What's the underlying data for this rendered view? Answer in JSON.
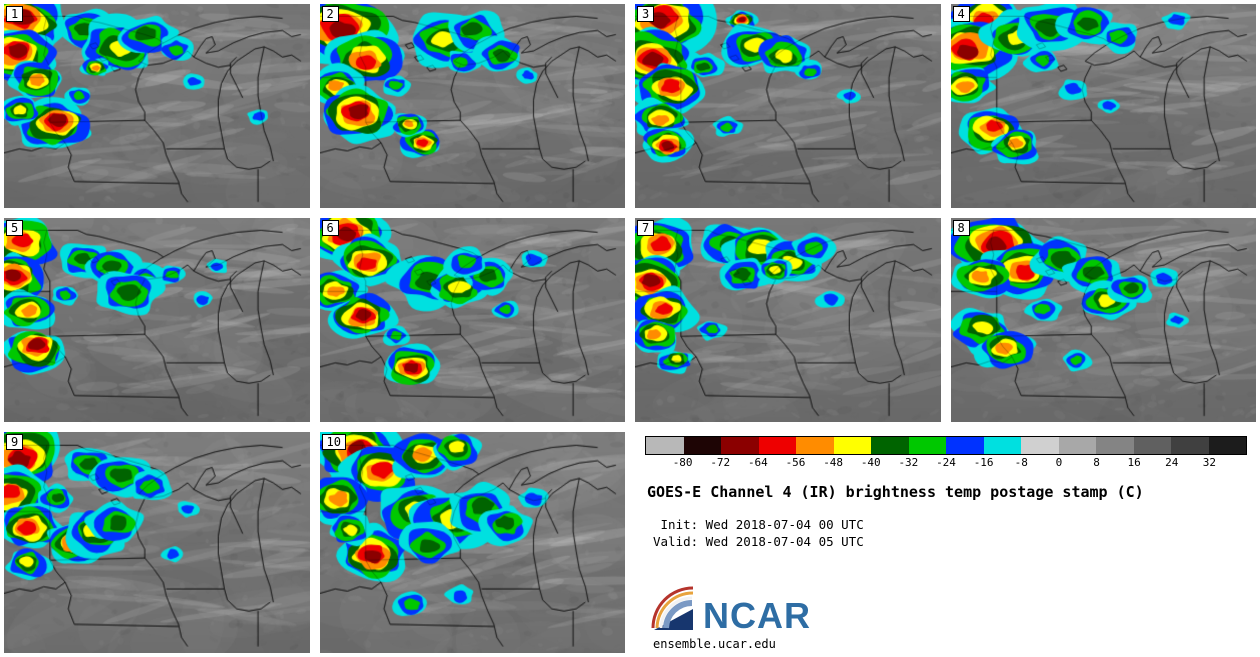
{
  "panels": [
    {
      "label": "1",
      "storms": [
        [
          7,
          10,
          12,
          8
        ],
        [
          4,
          26,
          11,
          8
        ],
        [
          11,
          38,
          8,
          6
        ],
        [
          16,
          60,
          10,
          8
        ],
        [
          5,
          52,
          6,
          5
        ],
        [
          27,
          13,
          8,
          4
        ],
        [
          37,
          20,
          11,
          5
        ],
        [
          47,
          15,
          8,
          4
        ],
        [
          56,
          22,
          5,
          3
        ],
        [
          30,
          31,
          4,
          6
        ],
        [
          24,
          45,
          4,
          3
        ],
        [
          62,
          38,
          3,
          2
        ],
        [
          83,
          55,
          3,
          2
        ]
      ]
    },
    {
      "label": "2",
      "storms": [
        [
          8,
          12,
          14,
          8
        ],
        [
          15,
          27,
          11,
          7
        ],
        [
          5,
          40,
          8,
          6
        ],
        [
          13,
          55,
          11,
          8
        ],
        [
          33,
          68,
          6,
          7
        ],
        [
          29,
          59,
          5,
          6
        ],
        [
          41,
          17,
          11,
          5
        ],
        [
          51,
          13,
          8,
          4
        ],
        [
          59,
          24,
          7,
          4
        ],
        [
          47,
          28,
          5,
          3
        ],
        [
          68,
          35,
          3,
          2
        ],
        [
          25,
          40,
          4,
          3
        ]
      ]
    },
    {
      "label": "3",
      "storms": [
        [
          10,
          9,
          13,
          8
        ],
        [
          6,
          27,
          12,
          8
        ],
        [
          12,
          42,
          10,
          7
        ],
        [
          8,
          56,
          8,
          6
        ],
        [
          35,
          8,
          4,
          8
        ],
        [
          39,
          20,
          9,
          5
        ],
        [
          49,
          25,
          8,
          5
        ],
        [
          10,
          68,
          7,
          8
        ],
        [
          30,
          60,
          4,
          3
        ],
        [
          57,
          33,
          4,
          3
        ],
        [
          70,
          45,
          3,
          2
        ],
        [
          23,
          30,
          5,
          4
        ]
      ]
    },
    {
      "label": "4",
      "storms": [
        [
          12,
          8,
          11,
          7
        ],
        [
          7,
          22,
          12,
          8
        ],
        [
          21,
          15,
          9,
          5
        ],
        [
          33,
          11,
          10,
          4
        ],
        [
          45,
          10,
          8,
          4
        ],
        [
          55,
          16,
          6,
          3
        ],
        [
          5,
          40,
          8,
          6
        ],
        [
          13,
          62,
          9,
          7
        ],
        [
          21,
          70,
          7,
          6
        ],
        [
          40,
          42,
          4,
          2
        ],
        [
          52,
          50,
          3,
          2
        ],
        [
          74,
          8,
          4,
          2
        ],
        [
          30,
          28,
          5,
          3
        ]
      ]
    },
    {
      "label": "5",
      "storms": [
        [
          5,
          12,
          11,
          7
        ],
        [
          3,
          30,
          10,
          8
        ],
        [
          8,
          45,
          8,
          6
        ],
        [
          10,
          66,
          9,
          8
        ],
        [
          26,
          20,
          7,
          4
        ],
        [
          36,
          25,
          8,
          4
        ],
        [
          46,
          30,
          6,
          3
        ],
        [
          41,
          36,
          9,
          4
        ],
        [
          55,
          28,
          4,
          3
        ],
        [
          65,
          40,
          3,
          2
        ],
        [
          70,
          24,
          3,
          2
        ],
        [
          20,
          38,
          4,
          3
        ]
      ]
    },
    {
      "label": "6",
      "storms": [
        [
          8,
          8,
          12,
          8
        ],
        [
          16,
          20,
          10,
          7
        ],
        [
          5,
          35,
          8,
          6
        ],
        [
          14,
          48,
          9,
          8
        ],
        [
          36,
          30,
          11,
          4
        ],
        [
          46,
          33,
          9,
          5
        ],
        [
          55,
          29,
          7,
          4
        ],
        [
          48,
          22,
          6,
          3
        ],
        [
          30,
          72,
          8,
          8
        ],
        [
          61,
          45,
          4,
          3
        ],
        [
          70,
          20,
          4,
          2
        ],
        [
          25,
          58,
          4,
          3
        ]
      ]
    },
    {
      "label": "7",
      "storms": [
        [
          8,
          14,
          11,
          7
        ],
        [
          4,
          30,
          10,
          8
        ],
        [
          10,
          45,
          9,
          7
        ],
        [
          7,
          58,
          7,
          6
        ],
        [
          31,
          12,
          9,
          4
        ],
        [
          41,
          18,
          11,
          5
        ],
        [
          51,
          22,
          9,
          5
        ],
        [
          58,
          15,
          6,
          3
        ],
        [
          36,
          28,
          7,
          4
        ],
        [
          46,
          26,
          5,
          5
        ],
        [
          25,
          55,
          4,
          3
        ],
        [
          64,
          40,
          4,
          2
        ],
        [
          13,
          70,
          5,
          5
        ]
      ]
    },
    {
      "label": "8",
      "storms": [
        [
          15,
          14,
          13,
          8
        ],
        [
          23,
          25,
          11,
          7
        ],
        [
          10,
          30,
          9,
          6
        ],
        [
          36,
          20,
          9,
          4
        ],
        [
          46,
          28,
          8,
          4
        ],
        [
          51,
          40,
          8,
          5
        ],
        [
          59,
          35,
          6,
          4
        ],
        [
          10,
          55,
          9,
          5
        ],
        [
          18,
          65,
          8,
          6
        ],
        [
          70,
          30,
          4,
          2
        ],
        [
          74,
          50,
          3,
          2
        ],
        [
          41,
          70,
          4,
          3
        ],
        [
          30,
          45,
          5,
          3
        ]
      ]
    },
    {
      "label": "9",
      "storms": [
        [
          6,
          10,
          12,
          8
        ],
        [
          3,
          28,
          10,
          7
        ],
        [
          8,
          42,
          9,
          7
        ],
        [
          23,
          50,
          8,
          8
        ],
        [
          31,
          45,
          9,
          5
        ],
        [
          28,
          15,
          7,
          4
        ],
        [
          38,
          20,
          8,
          4
        ],
        [
          48,
          25,
          6,
          3
        ],
        [
          36,
          41,
          8,
          4
        ],
        [
          60,
          35,
          3,
          2
        ],
        [
          55,
          55,
          3,
          2
        ],
        [
          8,
          60,
          6,
          5
        ],
        [
          17,
          30,
          5,
          4
        ]
      ]
    },
    {
      "label": "10",
      "storms": [
        [
          12,
          8,
          12,
          8
        ],
        [
          20,
          18,
          11,
          7
        ],
        [
          34,
          12,
          9,
          6
        ],
        [
          45,
          8,
          7,
          5
        ],
        [
          6,
          30,
          9,
          6
        ],
        [
          18,
          55,
          10,
          8
        ],
        [
          31,
          36,
          11,
          5
        ],
        [
          43,
          41,
          11,
          5
        ],
        [
          53,
          35,
          9,
          4
        ],
        [
          61,
          42,
          7,
          4
        ],
        [
          36,
          50,
          8,
          4
        ],
        [
          70,
          30,
          4,
          2
        ],
        [
          30,
          78,
          5,
          3
        ],
        [
          46,
          74,
          4,
          2
        ],
        [
          10,
          44,
          6,
          5
        ]
      ]
    }
  ],
  "colorbar": {
    "ticks": [
      "-80",
      "-72",
      "-64",
      "-56",
      "-48",
      "-40",
      "-32",
      "-24",
      "-16",
      "-8",
      "0",
      "8",
      "16",
      "24",
      "32"
    ],
    "segments": [
      "#b8b8b8",
      "#1e0505",
      "#8b0000",
      "#ee0000",
      "#ff8c00",
      "#ffff00",
      "#006400",
      "#00c800",
      "#0032ff",
      "#00e0e0",
      "#d0d0d0",
      "#a8a8a8",
      "#848484",
      "#606060",
      "#404040",
      "#1c1c1c"
    ],
    "units": "C"
  },
  "storm_palette_outer_to_inner": [
    "#00e0e0",
    "#0032ff",
    "#00c800",
    "#006400",
    "#ffff00",
    "#ff8c00",
    "#ee0000",
    "#8b0000"
  ],
  "title_block": {
    "title": "GOES-E Channel 4 (IR) brightness temp postage stamp (C)",
    "init_line": " Init: Wed 2018-07-04 00 UTC",
    "valid_line": "Valid: Wed 2018-07-04 05 UTC"
  },
  "logo": {
    "text": "NCAR",
    "url": "ensemble.ucar.edu"
  }
}
